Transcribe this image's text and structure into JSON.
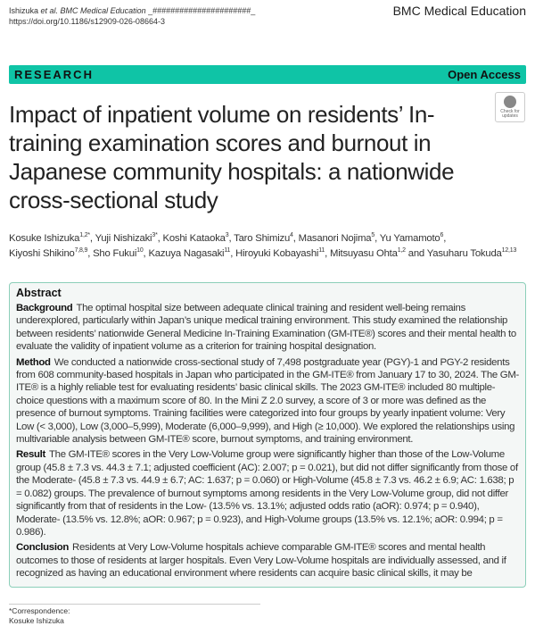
{
  "header": {
    "running_head_authors": "Ishizuka",
    "running_head_etal": "et al. BMC Medical Education",
    "running_head_suffix": " _######################_",
    "doi": "https://doi.org/10.1186/s12909-026-08664-3",
    "journal": "BMC Medical Education"
  },
  "banner": {
    "type": "RESEARCH",
    "access": "Open Access"
  },
  "check_updates": "Check for updates",
  "title": "Impact of inpatient volume on residents’ In-training examination scores and burnout in Japanese community hospitals: a nationwide cross-sectional study",
  "authors": [
    {
      "name": "Kosuke Ishizuka",
      "affil": "1,2*",
      "sep": ", "
    },
    {
      "name": "Yuji Nishizaki",
      "affil": "3*",
      "sep": ", "
    },
    {
      "name": "Koshi Kataoka",
      "affil": "3",
      "sep": ", "
    },
    {
      "name": "Taro Shimizu",
      "affil": "4",
      "sep": ", "
    },
    {
      "name": "Masanori Nojima",
      "affil": "5",
      "sep": ", "
    },
    {
      "name": "Yu Yamamoto",
      "affil": "6",
      "sep": ", "
    },
    {
      "name": "Kiyoshi Shikino",
      "affil": "7,8,9",
      "sep": ", "
    },
    {
      "name": "Sho Fukui",
      "affil": "10",
      "sep": ", "
    },
    {
      "name": "Kazuya Nagasaki",
      "affil": "11",
      "sep": ", "
    },
    {
      "name": "Hiroyuki Kobayashi",
      "affil": "11",
      "sep": ", "
    },
    {
      "name": "Mitsuyasu Ohta",
      "affil": "1,2",
      "sep": " and "
    },
    {
      "name": "Yasuharu Tokuda",
      "affil": "12,13",
      "sep": ""
    }
  ],
  "abstract": {
    "heading": "Abstract",
    "background_label": "Background",
    "background": "The optimal hospital size between adequate clinical training and resident well-being remains underexplored, particularly within Japan’s unique medical training environment. This study examined the relationship between residents’ nationwide General Medicine In-Training Examination (GM-ITE®) scores and their mental health to evaluate the validity of inpatient volume as a criterion for training hospital designation.",
    "method_label": "Method",
    "method": "We conducted a nationwide cross-sectional study of 7,498 postgraduate year (PGY)-1 and PGY-2 residents from 608 community-based hospitals in Japan who participated in the GM-ITE® from January 17 to 30, 2024. The GM-ITE® is a highly reliable test for evaluating residents’ basic clinical skills. The 2023 GM-ITE® included 80 multiple-choice questions with a maximum score of 80. In the Mini Z 2.0 survey, a score of 3 or more was defined as the presence of burnout symptoms. Training facilities were categorized into four groups by yearly inpatient volume: Very Low (< 3,000), Low (3,000–5,999), Moderate (6,000–9,999), and High (≥ 10,000). We explored the relationships using multivariable analysis between GM-ITE® score, burnout symptoms, and training environment.",
    "result_label": "Result",
    "result": "The GM-ITE® scores in the Very Low-Volume group were significantly higher than those of the Low-Volume group (45.8 ± 7.3 vs. 44.3 ± 7.1; adjusted coefficient (AC): 2.007; p = 0.021), but did not differ significantly from those of the Moderate- (45.8 ± 7.3 vs. 44.9 ± 6.7; AC: 1.637; p = 0.060) or High-Volume (45.8 ± 7.3 vs. 46.2 ± 6.9; AC: 1.638; p = 0.082) groups. The prevalence of burnout symptoms among residents in the Very Low-Volume group, did not differ significantly from that of residents in the Low- (13.5% vs. 13.1%; adjusted odds ratio (aOR): 0.974; p = 0.940), Moderate- (13.5% vs. 12.8%; aOR: 0.967; p = 0.923), and High-Volume groups (13.5% vs. 12.1%; aOR: 0.994; p = 0.986).",
    "conclusion_label": "Conclusion",
    "conclusion": "Residents at Very Low-Volume hospitals achieve comparable GM-ITE® scores and mental health outcomes to those of residents at larger hospitals. Even Very Low-Volume hospitals are individually assessed, and if recognized as having an educational environment where residents can acquire basic clinical skills, it may be"
  },
  "footnote": {
    "label": "*Correspondence:",
    "name": "Kosuke Ishizuka"
  }
}
